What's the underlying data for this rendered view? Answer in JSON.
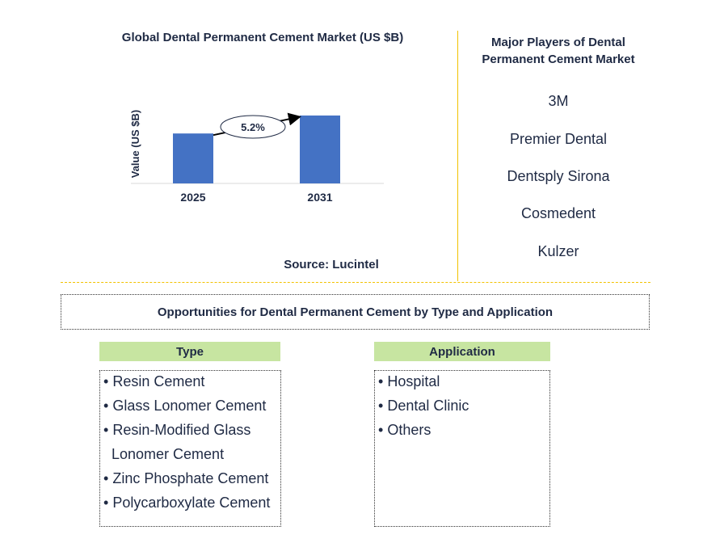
{
  "chart_data": {
    "type": "bar",
    "title": "Global Dental Permanent Cement Market (US $B)",
    "ylabel": "Value (US $B)",
    "xlabel": "",
    "categories": [
      "2025",
      "2031"
    ],
    "values": [
      1.0,
      1.36
    ],
    "ylim": [
      0,
      1.5
    ],
    "annotation": "5.2%",
    "colors": {
      "bar": "#4472c4",
      "axis": "#d9d9d9"
    }
  },
  "source": "Source: Lucintel",
  "players": {
    "title_line1": "Major Players of Dental",
    "title_line2": "Permanent Cement Market",
    "items": [
      "3M",
      "Premier Dental",
      "Dentsply Sirona",
      "Cosmedent",
      "Kulzer"
    ]
  },
  "opportunities": {
    "title": "Opportunities for Dental Permanent Cement by Type and Application"
  },
  "type": {
    "header": "Type",
    "items": [
      "Resin Cement",
      "Glass Lonomer Cement",
      "Resin-Modified Glass",
      "Lonomer Cement",
      "Zinc Phosphate Cement",
      "Polycarboxylate Cement"
    ]
  },
  "application": {
    "header": "Application",
    "items": [
      "Hospital",
      "Dental Clinic",
      "Others"
    ]
  },
  "bullet": "•"
}
